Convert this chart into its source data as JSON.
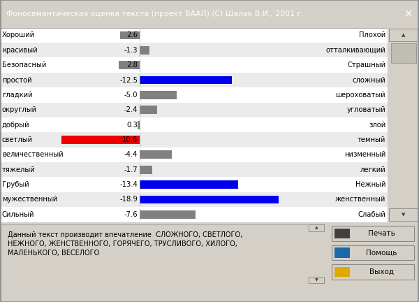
{
  "title": "Фоносемантическая оценка текста (проект ВААЛ) (С) Шалак В.И., 2001 г.",
  "title_bg": "#4a6fa5",
  "title_fg": "#ffffff",
  "window_bg": "#d4d0c8",
  "chart_bg": "#f0f0f0",
  "rows": [
    {
      "left": "Хороший",
      "value": 2.6,
      "right": "Плохой",
      "color": "gray"
    },
    {
      "left": "красивый",
      "value": -1.3,
      "right": "отталкивающий",
      "color": "gray"
    },
    {
      "left": "Безопасный",
      "value": 2.8,
      "right": "Страшный",
      "color": "gray"
    },
    {
      "left": "простой",
      "value": -12.5,
      "right": "сложный",
      "color": "blue"
    },
    {
      "left": "гладкий",
      "value": -5.0,
      "right": "шероховатый",
      "color": "gray"
    },
    {
      "left": "округлый",
      "value": -2.4,
      "right": "угловатый",
      "color": "gray"
    },
    {
      "left": "добрый",
      "value": 0.3,
      "right": "злой",
      "color": "gray"
    },
    {
      "left": "светлый",
      "value": 10.6,
      "right": "темный",
      "color": "red"
    },
    {
      "left": "величественный",
      "value": -4.4,
      "right": "низменный",
      "color": "gray"
    },
    {
      "left": "тяжелый",
      "value": -1.7,
      "right": "легкий",
      "color": "gray"
    },
    {
      "left": "Грубый",
      "value": -13.4,
      "right": "Нежный",
      "color": "blue"
    },
    {
      "left": "мужественный",
      "value": -18.9,
      "right": "женственный",
      "color": "blue"
    },
    {
      "left": "Сильный",
      "value": -7.6,
      "right": "Слабый",
      "color": "gray"
    }
  ],
  "bottom_text": "Данный текст производит впечатление  СЛОЖНОГО, СВЕТЛОГО,\nНЕЖНОГО, ЖЕНСТВЕННОГО, ГОРЯЧЕГО, ТРУСЛИВОГО, ХИЛОГО,\nМАЛЕНЬКОГО, ВЕСЕЛОГО",
  "btn_labels": [
    "Печать",
    "Помощь",
    "Выход"
  ],
  "gray_color": "#808080",
  "blue_color": "#0000ee",
  "red_color": "#ee0000",
  "bar_max": 20.0,
  "scrollbar_bg": "#c8c8c8",
  "scrollbar_thumb": "#a0a0a0",
  "bottom_bar_color": "#0000cc",
  "bottom_bar_width": 0.17
}
